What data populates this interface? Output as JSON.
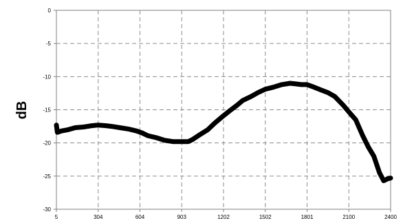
{
  "chart_data": {
    "type": "line",
    "title": "",
    "xlabel": "",
    "ylabel": "dB",
    "xlim": [
      5,
      2400
    ],
    "ylim": [
      -30,
      0
    ],
    "x_ticks": [
      "5",
      "304",
      "604",
      "903",
      "1202",
      "1502",
      "1801",
      "2100",
      "2400"
    ],
    "y_ticks": [
      "0",
      "-5",
      "-10",
      "-15",
      "-20",
      "-25",
      "-30"
    ],
    "grid": true,
    "series": [
      {
        "name": "",
        "color": "#000000",
        "points": [
          [
            5,
            -17.3
          ],
          [
            12,
            -18.4
          ],
          [
            40,
            -18.2
          ],
          [
            90,
            -18.0
          ],
          [
            140,
            -17.7
          ],
          [
            200,
            -17.6
          ],
          [
            260,
            -17.4
          ],
          [
            304,
            -17.3
          ],
          [
            360,
            -17.4
          ],
          [
            400,
            -17.5
          ],
          [
            460,
            -17.7
          ],
          [
            520,
            -17.9
          ],
          [
            580,
            -18.2
          ],
          [
            620,
            -18.5
          ],
          [
            660,
            -18.9
          ],
          [
            720,
            -19.2
          ],
          [
            780,
            -19.6
          ],
          [
            840,
            -19.8
          ],
          [
            903,
            -19.8
          ],
          [
            950,
            -19.8
          ],
          [
            980,
            -19.5
          ],
          [
            1030,
            -18.8
          ],
          [
            1090,
            -18.0
          ],
          [
            1140,
            -17.0
          ],
          [
            1202,
            -15.9
          ],
          [
            1250,
            -15.1
          ],
          [
            1300,
            -14.3
          ],
          [
            1340,
            -13.6
          ],
          [
            1400,
            -13.0
          ],
          [
            1450,
            -12.4
          ],
          [
            1502,
            -11.9
          ],
          [
            1560,
            -11.6
          ],
          [
            1620,
            -11.2
          ],
          [
            1680,
            -11.0
          ],
          [
            1720,
            -11.1
          ],
          [
            1760,
            -11.2
          ],
          [
            1801,
            -11.2
          ],
          [
            1840,
            -11.5
          ],
          [
            1900,
            -12.0
          ],
          [
            1950,
            -12.4
          ],
          [
            2000,
            -13.0
          ],
          [
            2060,
            -14.3
          ],
          [
            2100,
            -15.3
          ],
          [
            2150,
            -16.5
          ],
          [
            2200,
            -18.9
          ],
          [
            2240,
            -20.6
          ],
          [
            2280,
            -22.0
          ],
          [
            2320,
            -24.5
          ],
          [
            2350,
            -25.7
          ],
          [
            2380,
            -25.4
          ],
          [
            2400,
            -25.3
          ]
        ]
      }
    ]
  }
}
